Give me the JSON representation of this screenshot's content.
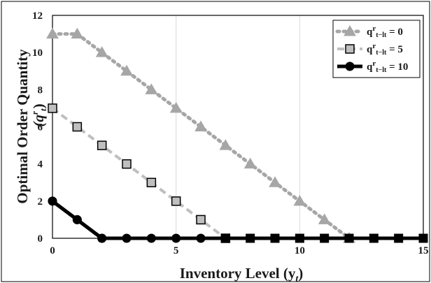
{
  "chart_data": {
    "type": "line",
    "xlabel": "Inventory Level (y",
    "xlabel_sub": "t",
    "xlabel_close": ")",
    "ylabel": "Optimal Order Quantity",
    "ylabel_var": "(q",
    "ylabel_var_sup": "r",
    "ylabel_var_sub": "t",
    "ylabel_close": ")",
    "xlim": [
      0,
      15
    ],
    "ylim": [
      0,
      12
    ],
    "x_ticks": [
      "0",
      "5",
      "10",
      "15"
    ],
    "y_ticks": [
      "0",
      "2",
      "4",
      "6",
      "8",
      "10",
      "12"
    ],
    "grid": "vertical at x = 5, 10, 15",
    "legend_position": "top-right",
    "series": [
      {
        "name_parts": [
          "q",
          "r",
          "t−lt",
          " = 0"
        ],
        "marker": "triangle",
        "line_style": "dotted",
        "line_color": "#a6a6a6",
        "marker_fill": "#a6a6a6",
        "x": [
          0,
          1,
          2,
          3,
          4,
          5,
          6,
          7,
          8,
          9,
          10,
          11,
          12,
          13,
          14,
          15
        ],
        "y": [
          11,
          11,
          10,
          9,
          8,
          7,
          6,
          5,
          4,
          3,
          2,
          1,
          0,
          0,
          0,
          0
        ]
      },
      {
        "name_parts": [
          "q",
          "r",
          "t−lt",
          " = 5"
        ],
        "marker": "square",
        "line_style": "dashed",
        "line_color": "#bfbfbf",
        "marker_fill": "#bfbfbf",
        "x": [
          0,
          1,
          2,
          3,
          4,
          5,
          6,
          7,
          8,
          9,
          10,
          11,
          12,
          13,
          14,
          15
        ],
        "y": [
          7,
          6,
          5,
          4,
          3,
          2,
          1,
          0,
          0,
          0,
          0,
          0,
          0,
          0,
          0,
          0
        ]
      },
      {
        "name_parts": [
          "q",
          "r",
          "t−lt",
          " = 10"
        ],
        "marker": "circle",
        "line_style": "solid",
        "line_color": "#000000",
        "marker_fill": "#000000",
        "x": [
          0,
          1,
          2,
          3,
          4,
          5,
          6,
          7,
          8,
          9,
          10,
          11,
          12,
          13,
          14,
          15
        ],
        "y": [
          2,
          1,
          0,
          0,
          0,
          0,
          0,
          0,
          0,
          0,
          0,
          0,
          0,
          0,
          0,
          0
        ]
      }
    ]
  }
}
